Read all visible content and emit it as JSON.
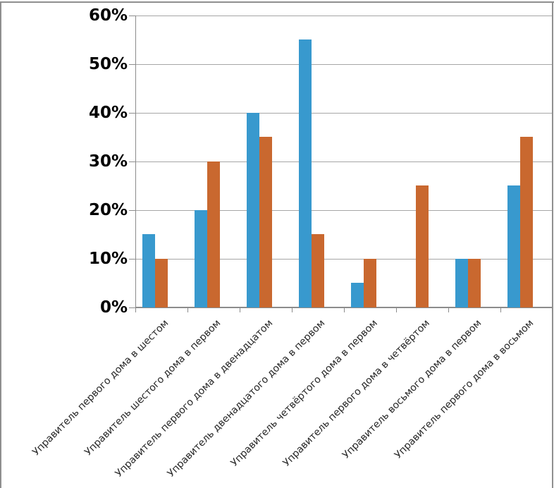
{
  "chart_data": {
    "type": "bar",
    "categories": [
      "Управитель первого дома в шестом",
      "Управитель шестого дома в первом",
      "Управитель первого дома в двенадцатом",
      "Управитель двенадцатого дома в первом",
      "Управитель четвёртого дома в первом",
      "Управитель первого дома в четвёртом",
      "Управитель восьмого дома в первом",
      "Управитель первого дома в восьмом"
    ],
    "series": [
      {
        "id": "blue",
        "color": "#3899CE",
        "values": [
          15,
          20,
          40,
          55,
          5,
          0,
          10,
          25
        ]
      },
      {
        "id": "orange",
        "color": "#C9682F",
        "values": [
          10,
          30,
          35,
          15,
          10,
          25,
          10,
          35
        ]
      }
    ],
    "ylim": [
      0,
      60
    ],
    "ytick_step": 10,
    "ytick_labels": [
      "0%",
      "10%",
      "20%",
      "30%",
      "40%",
      "50%",
      "60%"
    ],
    "yaxis_format": "percent",
    "grid": "horizontal-only",
    "legend_position": "none",
    "x_label_rotation_deg": -45
  },
  "style": {
    "background": "#FFFFFF",
    "frame_border_color": "#8F8F8F",
    "grid_color": "#A6A6A6",
    "axis_color": "#8C8C8C",
    "ytick_text_color": "#000000",
    "xtick_text_color": "#262626"
  }
}
